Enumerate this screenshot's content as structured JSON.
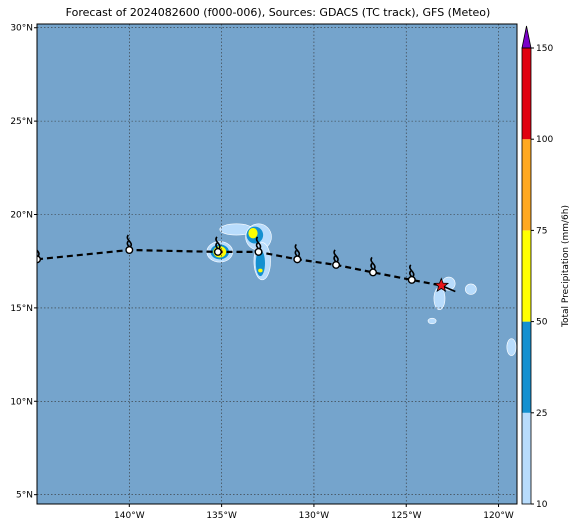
{
  "title": "Forecast of 2024082600 (f000-006), Sources: GDACS (TC track), GFS (Meteo)",
  "map": {
    "lon_range": [
      -145,
      -119
    ],
    "lat_range": [
      4.5,
      30.2
    ],
    "lon_ticks": [
      {
        "value": -140,
        "label": "140°W"
      },
      {
        "value": -135,
        "label": "135°W"
      },
      {
        "value": -130,
        "label": "130°W"
      },
      {
        "value": -125,
        "label": "125°W"
      },
      {
        "value": -120,
        "label": "120°W"
      }
    ],
    "lat_ticks": [
      {
        "value": 5,
        "label": "5°N"
      },
      {
        "value": 10,
        "label": "10°N"
      },
      {
        "value": 15,
        "label": "15°N"
      },
      {
        "value": 20,
        "label": "20°N"
      },
      {
        "value": 25,
        "label": "25°N"
      },
      {
        "value": 30,
        "label": "30°N"
      }
    ],
    "ocean_color": "#75a4cc",
    "grid": true
  },
  "track": {
    "points": [
      {
        "lon": -145.0,
        "lat": 17.6,
        "type": "circle"
      },
      {
        "lon": -140.0,
        "lat": 18.1,
        "type": "circle"
      },
      {
        "lon": -135.2,
        "lat": 18.0,
        "type": "circle"
      },
      {
        "lon": -133.0,
        "lat": 18.0,
        "type": "circle"
      },
      {
        "lon": -130.9,
        "lat": 17.6,
        "type": "circle"
      },
      {
        "lon": -128.8,
        "lat": 17.3,
        "type": "circle"
      },
      {
        "lon": -126.8,
        "lat": 16.9,
        "type": "circle"
      },
      {
        "lon": -124.7,
        "lat": 16.5,
        "type": "circle"
      },
      {
        "lon": -123.1,
        "lat": 16.2,
        "type": "current"
      }
    ],
    "current_color": "#e8161a"
  },
  "precip_patches": [
    {
      "lon": -135.1,
      "lat": 18.0,
      "rx": 0.7,
      "ry": 0.55,
      "level": 0
    },
    {
      "lon": -135.1,
      "lat": 18.0,
      "rx": 0.5,
      "ry": 0.4,
      "level": 1
    },
    {
      "lon": -135.1,
      "lat": 18.0,
      "rx": 0.35,
      "ry": 0.3,
      "level": 2
    },
    {
      "lon": -135.1,
      "lat": 18.0,
      "rx": 0.18,
      "ry": 0.15,
      "level": 3
    },
    {
      "lon": -134.2,
      "lat": 19.2,
      "rx": 0.9,
      "ry": 0.3,
      "level": 0
    },
    {
      "lon": -133.0,
      "lat": 18.8,
      "rx": 0.7,
      "ry": 0.7,
      "level": 0
    },
    {
      "lon": -132.8,
      "lat": 17.5,
      "rx": 0.45,
      "ry": 1.0,
      "level": 0
    },
    {
      "lon": -133.2,
      "lat": 18.9,
      "rx": 0.45,
      "ry": 0.45,
      "level": 1
    },
    {
      "lon": -133.3,
      "lat": 19.0,
      "rx": 0.25,
      "ry": 0.28,
      "level": 2
    },
    {
      "lon": -132.9,
      "lat": 17.4,
      "rx": 0.25,
      "ry": 0.7,
      "level": 1
    },
    {
      "lon": -132.9,
      "lat": 17.0,
      "rx": 0.12,
      "ry": 0.1,
      "level": 2
    },
    {
      "lon": -123.2,
      "lat": 15.5,
      "rx": 0.3,
      "ry": 0.6,
      "level": 0
    },
    {
      "lon": -122.7,
      "lat": 16.3,
      "rx": 0.35,
      "ry": 0.35,
      "level": 0
    },
    {
      "lon": -121.5,
      "lat": 16.0,
      "rx": 0.3,
      "ry": 0.28,
      "level": 0
    },
    {
      "lon": -123.6,
      "lat": 14.3,
      "rx": 0.22,
      "ry": 0.15,
      "level": 0
    },
    {
      "lon": -119.3,
      "lat": 12.9,
      "rx": 0.25,
      "ry": 0.45,
      "level": 0
    }
  ],
  "colorbar": {
    "label": "Total Precipitation (mm/6h)",
    "ticks": [
      {
        "value": "10",
        "pos": 0.0
      },
      {
        "value": "25",
        "pos": 0.2
      },
      {
        "value": "50",
        "pos": 0.4
      },
      {
        "value": "75",
        "pos": 0.6
      },
      {
        "value": "100",
        "pos": 0.8
      },
      {
        "value": "150",
        "pos": 1.0
      }
    ],
    "colors": [
      "#b8dcfc",
      "#1490d0",
      "#ffff00",
      "#ffa820",
      "#e00010"
    ],
    "extend_color": "#7a00c8"
  }
}
